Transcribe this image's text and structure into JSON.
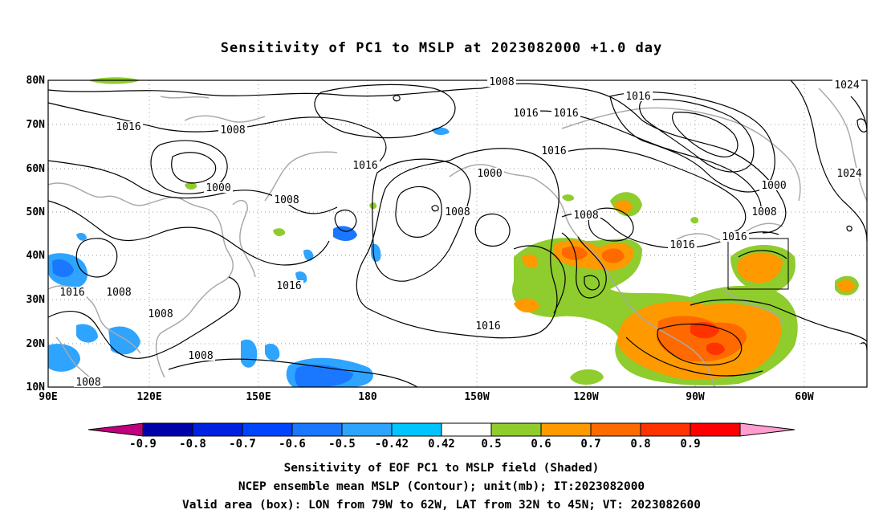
{
  "title": "Sensitivity of PC1 to MSLP at 2023082000 +1.0 day",
  "map": {
    "lat_labels": [
      "80N",
      "70N",
      "60N",
      "50N",
      "40N",
      "30N",
      "20N",
      "10N"
    ],
    "lon_labels": [
      "90E",
      "120E",
      "150E",
      "180",
      "150W",
      "120W",
      "90W",
      "60W"
    ],
    "contour_labels": [
      "1008",
      "1016",
      "1000",
      "1016",
      "1008",
      "1016",
      "1016",
      "1000",
      "1008",
      "1024",
      "1000",
      "1008",
      "1008",
      "1016",
      "1016",
      "1024",
      "1016",
      "1016",
      "1008",
      "1016",
      "1008",
      "1008",
      "1008",
      "1016",
      "1008",
      "1016"
    ]
  },
  "colorbar": {
    "labels": [
      "-0.9",
      "-0.8",
      "-0.7",
      "-0.6",
      "-0.5",
      "-0.42",
      "0.42",
      "0.5",
      "0.6",
      "0.7",
      "0.8",
      "0.9"
    ],
    "colors": [
      "#c0007f",
      "#0000aa",
      "#0022e0",
      "#0044ff",
      "#1a77ff",
      "#2ea4ff",
      "#00c4ff",
      "#ffffff",
      "#8fcc2d",
      "#ff9900",
      "#ff6a00",
      "#ff3300",
      "#ff0000",
      "#ff9ecf"
    ]
  },
  "footer": {
    "line1": "Sensitivity of EOF PC1 to MSLP field (Shaded)",
    "line2": "NCEP ensemble mean MSLP (Contour); unit(mb); IT:2023082000",
    "line3": "Valid area (box): LON from 79W to 62W, LAT from 32N to 45N; VT: 2023082600"
  }
}
